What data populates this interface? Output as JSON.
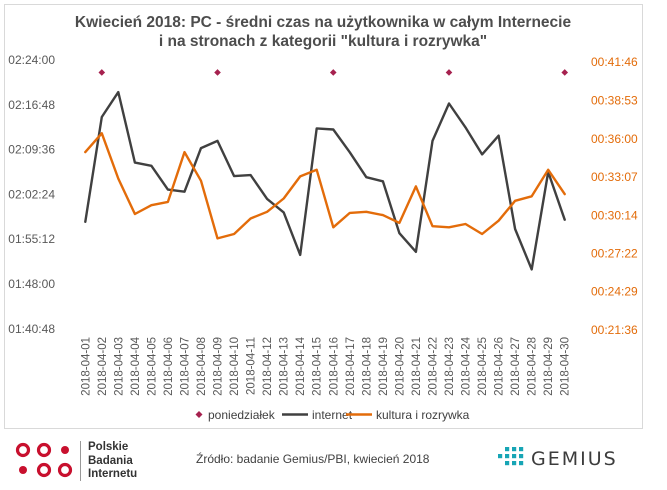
{
  "chart_data": {
    "type": "line",
    "title": "Kwiecień 2018: PC - średni czas na użytkownika w całym Internecie",
    "subtitle": "i na stronach z kategorii \"kultura i rozrywka\"",
    "categories": [
      "2018-04-01",
      "2018-04-02",
      "2018-04-03",
      "2018-04-04",
      "2018-04-05",
      "2018-04-06",
      "2018-04-07",
      "2018-04-08",
      "2018-04-09",
      "2018-04-10",
      "2018-04-11",
      "2018-04-12",
      "2018-04-13",
      "2018-04-14",
      "2018-04-15",
      "2018-04-16",
      "2018-04-17",
      "2018-04-18",
      "2018-04-19",
      "2018-04-20",
      "2018-04-21",
      "2018-04-22",
      "2018-04-23",
      "2018-04-24",
      "2018-04-25",
      "2018-04-26",
      "2018-04-27",
      "2018-04-28",
      "2018-04-29",
      "2018-04-30"
    ],
    "left_axis": {
      "ylim_seconds": [
        6036,
        8640
      ],
      "tick_labels": [
        "01:40:48",
        "01:48:00",
        "01:55:12",
        "02:02:24",
        "02:09:36",
        "02:16:48",
        "02:24:00"
      ],
      "tick_values_seconds": [
        6048,
        6480,
        6912,
        7344,
        7776,
        8208,
        8640
      ]
    },
    "right_axis": {
      "ylim_seconds": [
        1296,
        2516
      ],
      "tick_labels": [
        "00:21:36",
        "00:24:29",
        "00:27:22",
        "00:30:14",
        "00:33:07",
        "00:36:00",
        "00:38:53",
        "00:41:46"
      ],
      "tick_values_seconds": [
        1296,
        1469,
        1642,
        1814,
        1987,
        2160,
        2333,
        2506
      ]
    },
    "series": [
      {
        "name": "internet",
        "axis": "left",
        "color": "#404040",
        "values_hms": [
          "01:58:00",
          "02:14:50",
          "02:18:50",
          "02:07:30",
          "02:07:00",
          "02:03:10",
          "02:02:50",
          "02:09:50",
          "02:11:00",
          "02:05:20",
          "02:05:30",
          "02:01:40",
          "01:59:30",
          "01:52:40",
          "02:13:00",
          "02:12:50",
          "02:09:10",
          "02:05:10",
          "02:04:30",
          "01:56:10",
          "01:53:10",
          "02:11:00",
          "02:17:00",
          "02:13:10",
          "02:08:50",
          "02:11:50",
          "01:56:50",
          "01:50:20",
          "02:06:00",
          "01:58:20"
        ],
        "values_seconds": [
          7080,
          8090,
          8330,
          7650,
          7620,
          7390,
          7370,
          7790,
          7860,
          7520,
          7530,
          7300,
          7170,
          6760,
          7980,
          7970,
          7750,
          7510,
          7470,
          6970,
          6790,
          7860,
          8220,
          7990,
          7730,
          7910,
          7010,
          6620,
          7560,
          7100
        ]
      },
      {
        "name": "kultura i rozrywka",
        "axis": "right",
        "color": "#e36c0a",
        "values_hms": [
          "00:35:00",
          "00:36:25",
          "00:33:00",
          "00:30:20",
          "00:31:00",
          "00:31:15",
          "00:35:00",
          "00:32:50",
          "00:28:30",
          "00:28:50",
          "00:30:00",
          "00:30:30",
          "00:31:30",
          "00:33:10",
          "00:33:40",
          "00:29:20",
          "00:30:25",
          "00:30:30",
          "00:30:15",
          "00:29:40",
          "00:32:25",
          "00:29:25",
          "00:29:20",
          "00:29:35",
          "00:28:50",
          "00:29:50",
          "00:31:20",
          "00:31:40",
          "00:33:40",
          "00:31:50"
        ],
        "values_seconds": [
          2100,
          2185,
          1980,
          1820,
          1860,
          1875,
          2100,
          1970,
          1710,
          1730,
          1800,
          1830,
          1890,
          1990,
          2020,
          1760,
          1825,
          1830,
          1815,
          1780,
          1945,
          1765,
          1760,
          1775,
          1730,
          1790,
          1880,
          1900,
          2020,
          1910
        ]
      },
      {
        "name": "poniedziałek",
        "type": "scatter",
        "axis": "left",
        "color": "#a6214f",
        "x": [
          "2018-04-02",
          "2018-04-09",
          "2018-04-16",
          "2018-04-23",
          "2018-04-30"
        ],
        "values_hms": [
          "02:22:00",
          "02:22:00",
          "02:22:00",
          "02:22:00",
          "02:22:00"
        ],
        "values_seconds": [
          8520,
          8520,
          8520,
          8520,
          8520
        ]
      }
    ],
    "legend": [
      "poniedziałek",
      "internet",
      "kultura i rozrywka"
    ],
    "legend_position": "bottom",
    "grid": false
  },
  "footer": {
    "source": "Źródło: badanie Gemius/PBI,  kwiecień 2018",
    "pbi_lines": [
      "Polskie",
      "Badania",
      "Internetu"
    ],
    "gemius_name": "GEMIUS"
  },
  "colors": {
    "internet": "#404040",
    "culture": "#e36c0a",
    "monday": "#a6214f",
    "pbi_red": "#c8102e",
    "gemius_teal": "#17a5b5"
  }
}
